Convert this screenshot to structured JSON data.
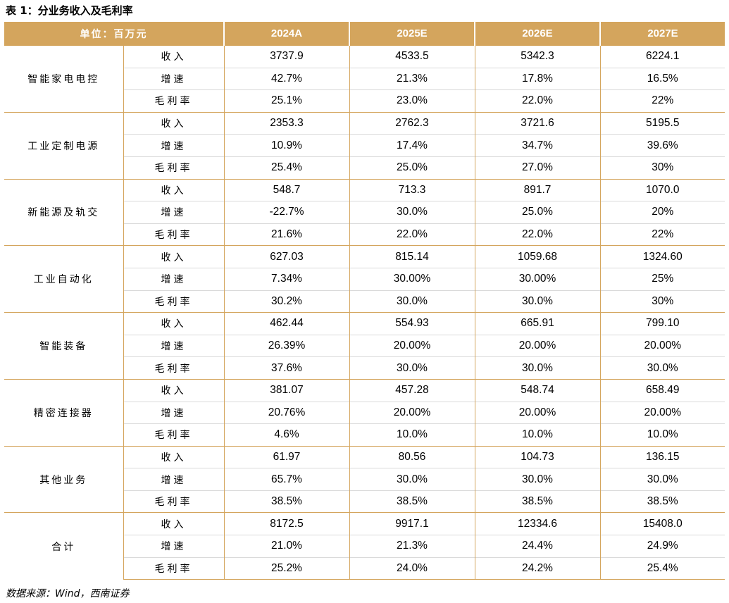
{
  "title": "表 1：分业务收入及毛利率",
  "header": {
    "unit_label": "单位：百万元",
    "years": [
      "2024A",
      "2025E",
      "2026E",
      "2027E"
    ]
  },
  "metrics": [
    "收入",
    "增速",
    "毛利率"
  ],
  "segments": [
    {
      "name": "智能家电电控",
      "rows": [
        [
          "3737.9",
          "4533.5",
          "5342.3",
          "6224.1"
        ],
        [
          "42.7%",
          "21.3%",
          "17.8%",
          "16.5%"
        ],
        [
          "25.1%",
          "23.0%",
          "22.0%",
          "22%"
        ]
      ]
    },
    {
      "name": "工业定制电源",
      "rows": [
        [
          "2353.3",
          "2762.3",
          "3721.6",
          "5195.5"
        ],
        [
          "10.9%",
          "17.4%",
          "34.7%",
          "39.6%"
        ],
        [
          "25.4%",
          "25.0%",
          "27.0%",
          "30%"
        ]
      ]
    },
    {
      "name": "新能源及轨交",
      "rows": [
        [
          "548.7",
          "713.3",
          "891.7",
          "1070.0"
        ],
        [
          "-22.7%",
          "30.0%",
          "25.0%",
          "20%"
        ],
        [
          "21.6%",
          "22.0%",
          "22.0%",
          "22%"
        ]
      ]
    },
    {
      "name": "工业自动化",
      "rows": [
        [
          "627.03",
          "815.14",
          "1059.68",
          "1324.60"
        ],
        [
          "7.34%",
          "30.00%",
          "30.00%",
          "25%"
        ],
        [
          "30.2%",
          "30.0%",
          "30.0%",
          "30%"
        ]
      ]
    },
    {
      "name": "智能装备",
      "rows": [
        [
          "462.44",
          "554.93",
          "665.91",
          "799.10"
        ],
        [
          "26.39%",
          "20.00%",
          "20.00%",
          "20.00%"
        ],
        [
          "37.6%",
          "30.0%",
          "30.0%",
          "30.0%"
        ]
      ]
    },
    {
      "name": "精密连接器",
      "rows": [
        [
          "381.07",
          "457.28",
          "548.74",
          "658.49"
        ],
        [
          "20.76%",
          "20.00%",
          "20.00%",
          "20.00%"
        ],
        [
          "4.6%",
          "10.0%",
          "10.0%",
          "10.0%"
        ]
      ]
    },
    {
      "name": "其他业务",
      "rows": [
        [
          "61.97",
          "80.56",
          "104.73",
          "136.15"
        ],
        [
          "65.7%",
          "30.0%",
          "30.0%",
          "30.0%"
        ],
        [
          "38.5%",
          "38.5%",
          "38.5%",
          "38.5%"
        ]
      ]
    },
    {
      "name": "合计",
      "rows": [
        [
          "8172.5",
          "9917.1",
          "12334.6",
          "15408.0"
        ],
        [
          "21.0%",
          "21.3%",
          "24.4%",
          "24.9%"
        ],
        [
          "25.2%",
          "24.0%",
          "24.2%",
          "25.4%"
        ]
      ]
    }
  ],
  "source": "数据来源：Wind，西南证券",
  "colors": {
    "header_bg": "#d4a55d",
    "header_text": "#ffffff",
    "group_border": "#d4a55d",
    "row_border": "#d9d9d9"
  }
}
